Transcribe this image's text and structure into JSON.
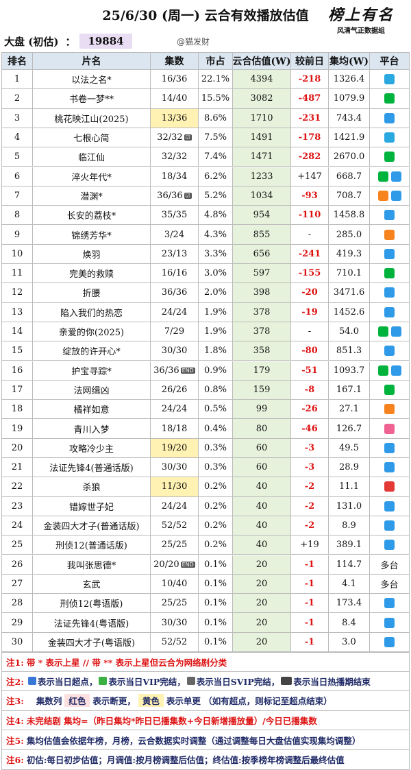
{
  "header": {
    "title": "25/6/30 (周一) 云合有效播放估值",
    "market_label": "大盘 (初估)",
    "colon": "：",
    "market_value": "19884",
    "handle": "@猫发财",
    "logo": "榜上有名",
    "logo_sub": "风清气正数据组"
  },
  "table": {
    "columns": [
      "排名",
      "片名",
      "集数",
      "市占",
      "云合估值(W)",
      "较前日",
      "集均(W)",
      "平台"
    ],
    "rows": [
      [
        "1",
        "以法之名*",
        "16/36",
        "22.1%",
        "4394",
        "-218",
        "1326.4"
      ],
      [
        "2",
        "书卷一梦**",
        "14/40",
        "15.5%",
        "3082",
        "-487",
        "1079.9"
      ],
      [
        "3",
        "桃花映江山(2025)",
        "13/36",
        "8.6%",
        "1710",
        "-231",
        "743.4"
      ],
      [
        "4",
        "七根心简",
        "32/32",
        "7.5%",
        "1491",
        "-178",
        "1421.9"
      ],
      [
        "5",
        "临江仙",
        "32/32",
        "7.4%",
        "1471",
        "-282",
        "2670.0"
      ],
      [
        "6",
        "淬火年代*",
        "18/34",
        "6.2%",
        "1233",
        "+147",
        "668.7"
      ],
      [
        "7",
        "潜渊*",
        "36/36",
        "5.2%",
        "1034",
        "-93",
        "708.7"
      ],
      [
        "8",
        "长安的荔枝*",
        "35/35",
        "4.8%",
        "954",
        "-110",
        "1458.8"
      ],
      [
        "9",
        "锦绣芳华*",
        "3/24",
        "4.3%",
        "855",
        "-",
        "285.0"
      ],
      [
        "10",
        "焕羽",
        "23/13",
        "3.3%",
        "656",
        "-241",
        "419.3"
      ],
      [
        "11",
        "完美的救赎",
        "16/16",
        "3.0%",
        "597",
        "-155",
        "710.1"
      ],
      [
        "12",
        "折腰",
        "36/36",
        "2.0%",
        "398",
        "-20",
        "3471.6"
      ],
      [
        "13",
        "陷入我们的热恋",
        "24/24",
        "1.9%",
        "378",
        "-19",
        "1452.6"
      ],
      [
        "14",
        "亲爱的你(2025)",
        "7/29",
        "1.9%",
        "378",
        "-",
        "54.0"
      ],
      [
        "15",
        "绽放的许开心*",
        "30/30",
        "1.8%",
        "358",
        "-80",
        "851.3"
      ],
      [
        "16",
        "护宝寻踪*",
        "36/36",
        "0.9%",
        "179",
        "-51",
        "1093.7"
      ],
      [
        "17",
        "法网缉凶",
        "26/26",
        "0.8%",
        "159",
        "-8",
        "167.1"
      ],
      [
        "18",
        "橘祥如意",
        "24/24",
        "0.5%",
        "99",
        "-26",
        "27.1"
      ],
      [
        "19",
        "青川入梦",
        "18/18",
        "0.4%",
        "80",
        "-46",
        "126.7"
      ],
      [
        "20",
        "攻略冷少主",
        "19/20",
        "0.3%",
        "60",
        "-3",
        "49.5"
      ],
      [
        "21",
        "法证先锋4(普通话版)",
        "30/30",
        "0.3%",
        "60",
        "-3",
        "28.9"
      ],
      [
        "22",
        "杀狼",
        "11/30",
        "0.2%",
        "40",
        "-2",
        "11.1"
      ],
      [
        "23",
        "错嫁世子妃",
        "24/24",
        "0.2%",
        "40",
        "-2",
        "131.0"
      ],
      [
        "24",
        "金装四大才子(普通话版)",
        "52/52",
        "0.2%",
        "40",
        "-2",
        "8.9"
      ],
      [
        "25",
        "刑侦12(普通话版)",
        "25/25",
        "0.2%",
        "40",
        "+19",
        "389.1"
      ],
      [
        "26",
        "我叫张思德*",
        "20/20",
        "0.1%",
        "20",
        "-1",
        "114.7",
        "多台"
      ],
      [
        "27",
        "玄武",
        "10/40",
        "0.1%",
        "20",
        "-1",
        "4.1",
        "多台"
      ],
      [
        "28",
        "刑侦12(粤语版)",
        "25/25",
        "0.1%",
        "20",
        "-1",
        "173.4"
      ],
      [
        "29",
        "法证先锋4(粤语版)",
        "30/30",
        "0.1%",
        "20",
        "-1",
        "8.4"
      ],
      [
        "30",
        "金装四大才子(粤语版)",
        "52/52",
        "0.1%",
        "20",
        "-1",
        "3.0"
      ]
    ]
  },
  "notes": [
    {
      "label": "注1:",
      "parts": [
        "带 * 表示上星 // 带 ** 表示上星但云合为网络剧分类"
      ]
    },
    {
      "label": "注2:",
      "parts": [
        "表示当日超点，",
        "表示当日VIP完结，",
        "表示当日SVIP完结，",
        "表示当日热播期结束"
      ]
    },
    {
      "label": "注3:",
      "parts": [
        "集数列",
        "红色",
        "表示断更，",
        "黄色",
        "表示单更 （如有超点，则标记至超点结束）"
      ]
    },
    {
      "label": "注4:",
      "parts": [
        "未完结剧 集均=（昨日集均*昨日已播集数+今日新增播放量）/今日已播集数"
      ]
    },
    {
      "label": "注5:",
      "parts": [
        "集均估值会依据年榜，月榜，云合数据实时调整（通过调整每日大盘估值实现集均调整）"
      ]
    },
    {
      "label": "注6:",
      "parts": [
        "初估:每日初步估值；月调值:按月榜调整后估值；终估值:按季榜年榜调整后最终估值"
      ]
    }
  ]
}
